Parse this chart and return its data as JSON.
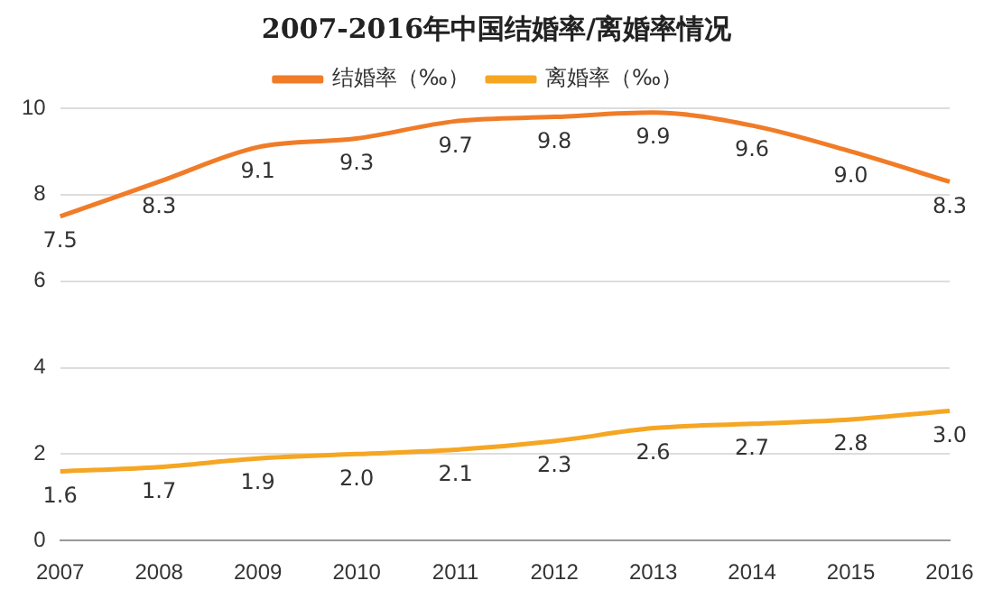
{
  "chart_data": {
    "type": "line",
    "title": "2007-2016年中国结婚率/离婚率情况",
    "categories": [
      "2007",
      "2008",
      "2009",
      "2010",
      "2011",
      "2012",
      "2013",
      "2014",
      "2015",
      "2016"
    ],
    "series": [
      {
        "name": "结婚率（‰）",
        "color": "#f07c28",
        "values": [
          7.5,
          8.3,
          9.1,
          9.3,
          9.7,
          9.8,
          9.9,
          9.6,
          9.0,
          8.3
        ],
        "value_labels": [
          "7.5",
          "8.3",
          "9.1",
          "9.3",
          "9.7",
          "9.8",
          "9.9",
          "9.6",
          "9.0",
          "8.3"
        ]
      },
      {
        "name": "离婚率（‰）",
        "color": "#f5a623",
        "values": [
          1.6,
          1.7,
          1.9,
          2.0,
          2.1,
          2.3,
          2.6,
          2.7,
          2.8,
          3.0
        ],
        "value_labels": [
          "1.6",
          "1.7",
          "1.9",
          "2.0",
          "2.1",
          "2.3",
          "2.6",
          "2.7",
          "2.8",
          "3.0"
        ]
      }
    ],
    "ylim": [
      0,
      10
    ],
    "yticks": [
      0,
      2,
      4,
      6,
      8,
      10
    ],
    "grid": "y",
    "legend": "top",
    "marker": "none",
    "line_style": "solid"
  }
}
